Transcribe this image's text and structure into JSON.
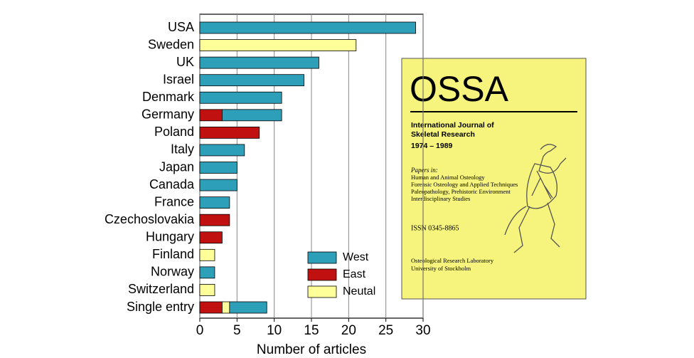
{
  "chart_data": {
    "type": "bar",
    "orientation": "horizontal",
    "stacked": true,
    "x_label": "Number of articles",
    "categories": [
      "USA",
      "Sweden",
      "UK",
      "Israel",
      "Denmark",
      "Germany",
      "Poland",
      "Italy",
      "Japan",
      "Canada",
      "France",
      "Czechoslovakia",
      "Hungary",
      "Finland",
      "Norway",
      "Switzerland",
      "Single entry"
    ],
    "series": [
      {
        "name": "West",
        "color": "#2e9fb8",
        "values": [
          29,
          null,
          16,
          14,
          11,
          8,
          null,
          6,
          5,
          5,
          4,
          null,
          null,
          null,
          2,
          null,
          5
        ]
      },
      {
        "name": "East",
        "color": "#c01010",
        "values": [
          null,
          null,
          null,
          null,
          null,
          3,
          8,
          null,
          null,
          null,
          null,
          4,
          3,
          null,
          null,
          null,
          3
        ]
      },
      {
        "name": "Neutal",
        "color": "#ffff99",
        "values": [
          null,
          21,
          null,
          null,
          null,
          null,
          null,
          null,
          null,
          null,
          null,
          null,
          null,
          2,
          null,
          2,
          1
        ]
      }
    ],
    "xlim": [
      0,
      30
    ],
    "xticks": [
      0,
      5,
      10,
      15,
      20,
      25,
      30
    ],
    "grid": true
  },
  "cover": {
    "title": "OSSA",
    "subtitle": [
      "International Journal of",
      "Skeletal Research",
      "1974 – 1989"
    ],
    "papers_heading": "Papers in:",
    "papers": [
      "Human and Animal Osteology",
      "Forensic Osteology and Applied Techniques",
      "Paleopathology, Prehistoric Environment",
      "Interdisciplinary Studies"
    ],
    "issn": "ISSN 0345-8865",
    "publisher": [
      "Osteological Research Laboratory",
      "University of Stockholm"
    ]
  }
}
